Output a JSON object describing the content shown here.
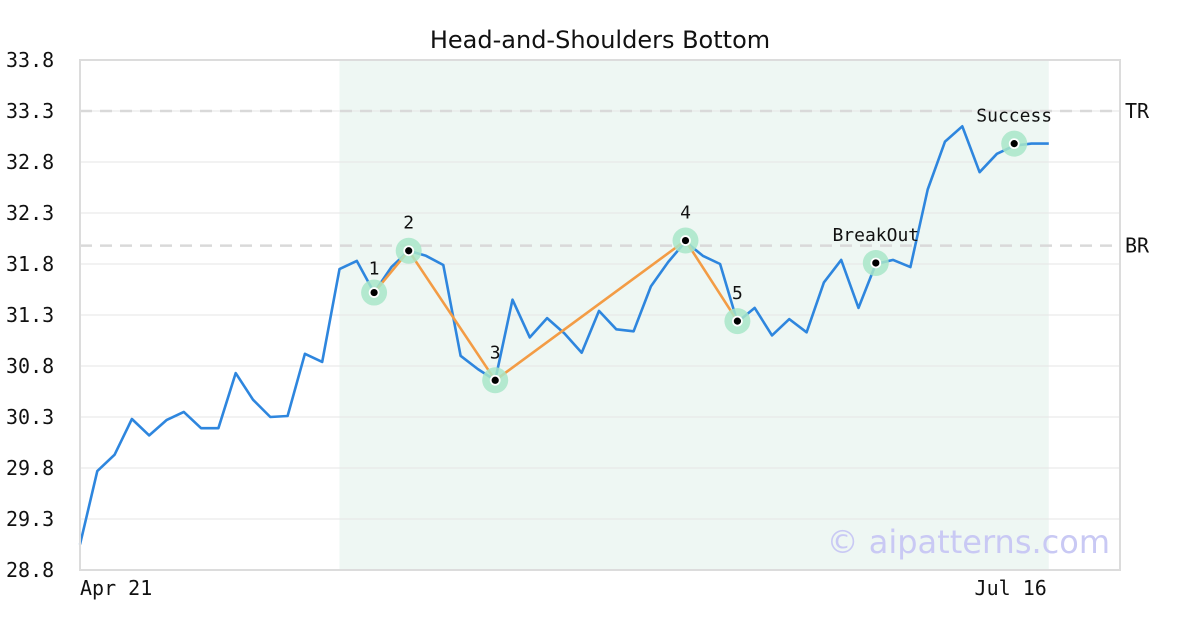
{
  "chart_data": {
    "type": "line",
    "title": "Head-and-Shoulders Bottom",
    "xlabel": "",
    "ylabel": "",
    "ylim": [
      28.8,
      33.8
    ],
    "y_ticks": [
      "33.8",
      "33.3",
      "32.8",
      "32.3",
      "31.8",
      "31.3",
      "30.8",
      "30.3",
      "29.8",
      "29.3",
      "28.8"
    ],
    "x_ticks": [
      {
        "label": "Apr 21",
        "index": 0
      },
      {
        "label": "Jul 16",
        "index": 56
      }
    ],
    "grid": true,
    "pattern_range": [
      15,
      56
    ],
    "series": [
      {
        "color": "#2e86de",
        "values": [
          29.05,
          29.77,
          29.93,
          30.28,
          30.12,
          30.27,
          30.35,
          30.19,
          30.19,
          30.73,
          30.47,
          30.3,
          30.31,
          30.92,
          30.84,
          31.75,
          31.83,
          31.52,
          31.77,
          31.93,
          31.88,
          31.79,
          30.9,
          30.77,
          30.66,
          31.45,
          31.08,
          31.27,
          31.12,
          30.93,
          31.34,
          31.16,
          31.14,
          31.58,
          31.82,
          32.02,
          31.88,
          31.8,
          31.23,
          31.37,
          31.1,
          31.26,
          31.13,
          31.62,
          31.84,
          31.37,
          31.8,
          31.84,
          31.77,
          32.53,
          33.0,
          33.15,
          32.7,
          32.88,
          32.96,
          32.98,
          32.98
        ]
      }
    ],
    "pattern_line": {
      "color": "#f39c45"
    },
    "points": [
      {
        "label": "1",
        "index": 17,
        "value": 31.52
      },
      {
        "label": "2",
        "index": 19,
        "value": 31.93
      },
      {
        "label": "3",
        "index": 24,
        "value": 30.66
      },
      {
        "label": "4",
        "index": 35,
        "value": 32.03
      },
      {
        "label": "5",
        "index": 38,
        "value": 31.24
      },
      {
        "label": "BreakOut",
        "index": 46,
        "value": 31.81
      },
      {
        "label": "Success",
        "index": 54,
        "value": 32.98
      }
    ],
    "levels": [
      {
        "label": "TR",
        "value": 33.3
      },
      {
        "label": "BR",
        "value": 31.98
      }
    ],
    "watermark": "© aipatterns.com"
  }
}
